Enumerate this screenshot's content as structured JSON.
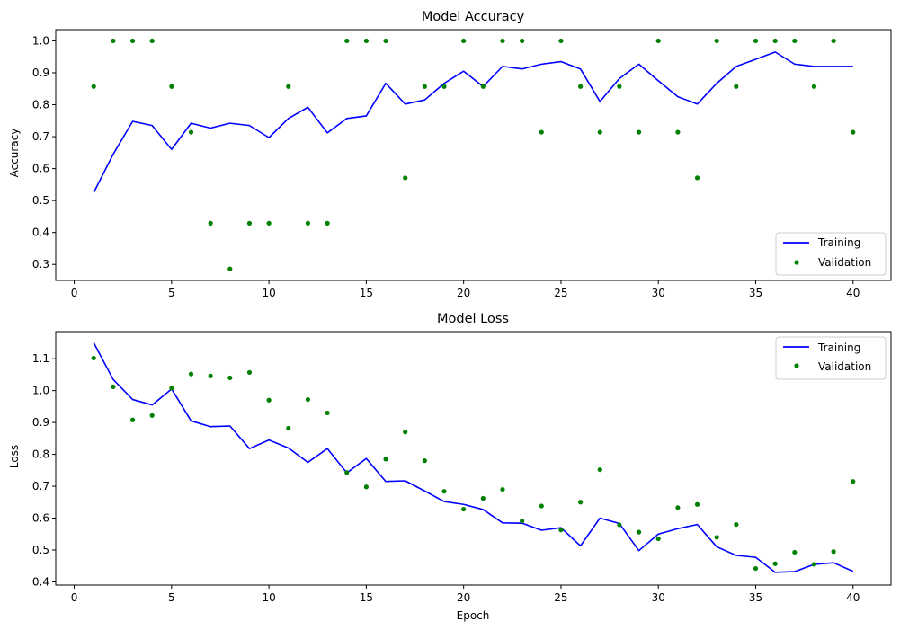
{
  "colors": {
    "training": "#0000ff",
    "validation": "#008000"
  },
  "chart_data": [
    {
      "type": "line",
      "title": "Model Accuracy",
      "xlabel": "",
      "ylabel": "Accuracy",
      "xlim": [
        -0.95,
        41.95
      ],
      "ylim": [
        0.25,
        1.035
      ],
      "xticks": [
        0,
        5,
        10,
        15,
        20,
        25,
        30,
        35,
        40
      ],
      "yticks": [
        0.3,
        0.4,
        0.5,
        0.6,
        0.7,
        0.8,
        0.9,
        1.0
      ],
      "ytick_labels": [
        "0.3",
        "0.4",
        "0.5",
        "0.6",
        "0.7",
        "0.8",
        "0.9",
        "1.0"
      ],
      "grid": false,
      "legend": "lower-right",
      "x": [
        1,
        2,
        3,
        4,
        5,
        6,
        7,
        8,
        9,
        10,
        11,
        12,
        13,
        14,
        15,
        16,
        17,
        18,
        19,
        20,
        21,
        22,
        23,
        24,
        25,
        26,
        27,
        28,
        29,
        30,
        31,
        32,
        33,
        34,
        35,
        36,
        37,
        38,
        39,
        40
      ],
      "series": [
        {
          "name": "Training",
          "kind": "line",
          "values": [
            0.525,
            0.645,
            0.748,
            0.735,
            0.66,
            0.742,
            0.727,
            0.742,
            0.735,
            0.697,
            0.757,
            0.792,
            0.712,
            0.757,
            0.765,
            0.867,
            0.802,
            0.815,
            0.867,
            0.905,
            0.857,
            0.92,
            0.912,
            0.927,
            0.935,
            0.912,
            0.81,
            0.882,
            0.927,
            0.875,
            0.825,
            0.802,
            0.867,
            0.92,
            0.942,
            0.965,
            0.927,
            0.92,
            0.92,
            0.92
          ]
        },
        {
          "name": "Validation",
          "kind": "scatter",
          "values": [
            0.857,
            1.0,
            1.0,
            1.0,
            0.857,
            0.714,
            0.429,
            0.286,
            0.429,
            0.429,
            0.857,
            0.429,
            0.429,
            1.0,
            1.0,
            1.0,
            0.571,
            0.857,
            0.857,
            1.0,
            0.857,
            1.0,
            1.0,
            0.714,
            1.0,
            0.857,
            0.714,
            0.857,
            0.714,
            1.0,
            0.714,
            0.571,
            1.0,
            0.857,
            1.0,
            1.0,
            1.0,
            0.857,
            1.0,
            0.714
          ]
        }
      ]
    },
    {
      "type": "line",
      "title": "Model Loss",
      "xlabel": "Epoch",
      "ylabel": "Loss",
      "xlim": [
        -0.95,
        41.95
      ],
      "ylim": [
        0.39,
        1.185
      ],
      "xticks": [
        0,
        5,
        10,
        15,
        20,
        25,
        30,
        35,
        40
      ],
      "yticks": [
        0.4,
        0.5,
        0.6,
        0.7,
        0.8,
        0.9,
        1.0,
        1.1
      ],
      "ytick_labels": [
        "0.4",
        "0.5",
        "0.6",
        "0.7",
        "0.8",
        "0.9",
        "1.0",
        "1.1"
      ],
      "grid": false,
      "legend": "upper-right",
      "x": [
        1,
        2,
        3,
        4,
        5,
        6,
        7,
        8,
        9,
        10,
        11,
        12,
        13,
        14,
        15,
        16,
        17,
        18,
        19,
        20,
        21,
        22,
        23,
        24,
        25,
        26,
        27,
        28,
        29,
        30,
        31,
        32,
        33,
        34,
        35,
        36,
        37,
        38,
        39,
        40
      ],
      "series": [
        {
          "name": "Training",
          "kind": "line",
          "values": [
            1.15,
            1.035,
            0.972,
            0.955,
            1.005,
            0.905,
            0.887,
            0.889,
            0.818,
            0.845,
            0.82,
            0.775,
            0.818,
            0.742,
            0.787,
            0.715,
            0.717,
            0.685,
            0.652,
            0.643,
            0.627,
            0.585,
            0.584,
            0.562,
            0.57,
            0.513,
            0.6,
            0.583,
            0.498,
            0.55,
            0.567,
            0.58,
            0.51,
            0.483,
            0.477,
            0.43,
            0.432,
            0.455,
            0.46,
            0.433
          ]
        },
        {
          "name": "Validation",
          "kind": "scatter",
          "values": [
            1.102,
            1.012,
            0.908,
            0.922,
            1.008,
            1.052,
            1.046,
            1.04,
            1.057,
            0.97,
            0.882,
            0.972,
            0.93,
            0.743,
            0.698,
            0.785,
            0.87,
            0.78,
            0.684,
            0.628,
            0.662,
            0.69,
            0.591,
            0.638,
            0.563,
            0.65,
            0.752,
            0.579,
            0.556,
            0.535,
            0.633,
            0.643,
            0.54,
            0.58,
            0.442,
            0.457,
            0.493,
            0.455,
            0.495,
            0.715
          ]
        }
      ]
    }
  ]
}
